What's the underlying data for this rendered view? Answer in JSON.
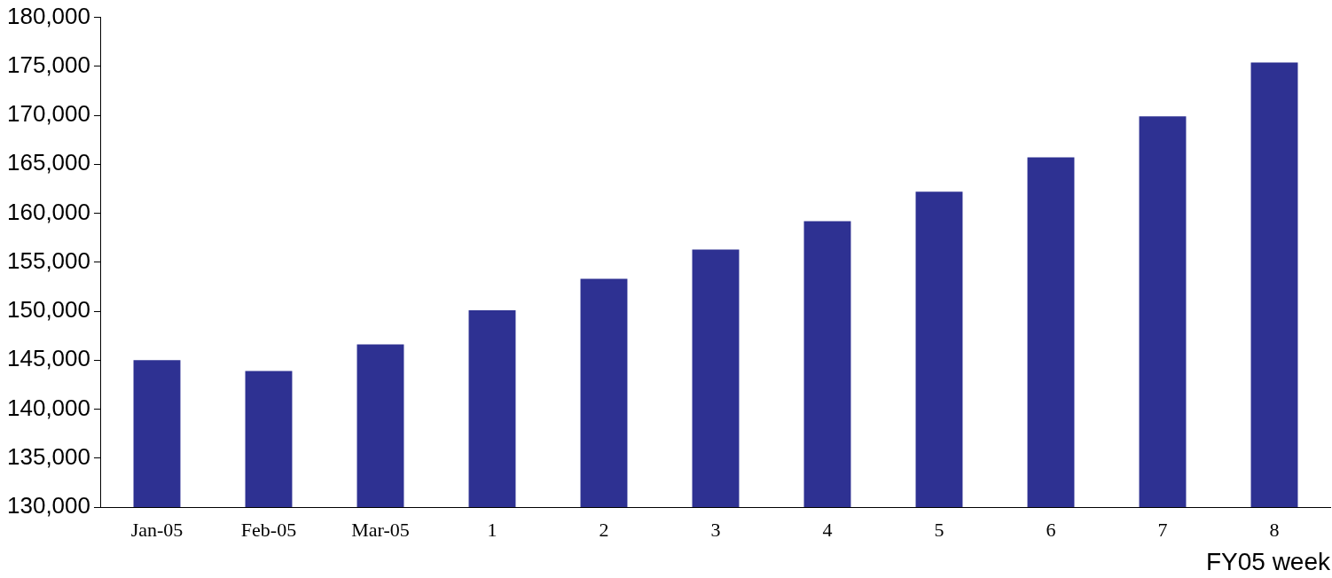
{
  "chart_data": {
    "type": "bar",
    "xlabel": "FY05 week",
    "categories": [
      "Jan-05",
      "Feb-05",
      "Mar-05",
      "1",
      "2",
      "3",
      "4",
      "5",
      "6",
      "7",
      "8"
    ],
    "values": [
      145000,
      143900,
      146600,
      150100,
      153300,
      156300,
      159200,
      162200,
      165700,
      169900,
      175400
    ],
    "color": "#2e3192",
    "ylim": [
      130000,
      180000
    ],
    "yticks": [
      {
        "value": 130000,
        "label": "130,000"
      },
      {
        "value": 135000,
        "label": "135,000"
      },
      {
        "value": 140000,
        "label": "140,000"
      },
      {
        "value": 145000,
        "label": "145,000"
      },
      {
        "value": 150000,
        "label": "150,000"
      },
      {
        "value": 155000,
        "label": "155,000"
      },
      {
        "value": 160000,
        "label": "160,000"
      },
      {
        "value": 165000,
        "label": "165,000"
      },
      {
        "value": 170000,
        "label": "170,000"
      },
      {
        "value": 175000,
        "label": "175,000"
      },
      {
        "value": 180000,
        "label": "180,000"
      }
    ],
    "grid": false,
    "legend": false
  }
}
